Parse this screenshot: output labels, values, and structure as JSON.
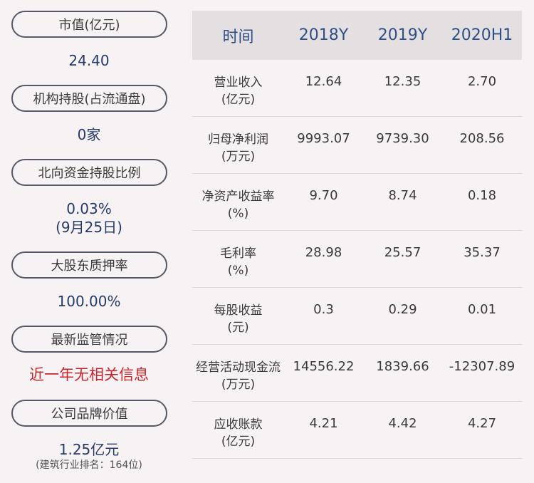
{
  "left": {
    "items": [
      {
        "label": "市值(亿元)",
        "value": "24.40"
      },
      {
        "label": "机构持股(占流通盘)",
        "value": "0家"
      },
      {
        "label": "北向资金持股比例",
        "value": "0.03%",
        "value2": "(9月25日)"
      },
      {
        "label": "大股东质押率",
        "value": "100.00%"
      },
      {
        "label": "最新监管情况",
        "value": "近一年无相关信息"
      },
      {
        "label": "公司品牌价值",
        "value": "1.25亿元",
        "note": "(建筑行业排名：164位)"
      }
    ]
  },
  "table": {
    "headers": [
      "时间",
      "2018Y",
      "2019Y",
      "2020H1"
    ],
    "rows": [
      {
        "label": "营业收入",
        "unit": "(亿元)",
        "values": [
          "12.64",
          "12.35",
          "2.70"
        ]
      },
      {
        "label": "归母净利润",
        "unit": "(万元)",
        "values": [
          "9993.07",
          "9739.30",
          "208.56"
        ]
      },
      {
        "label": "净资产收益率",
        "unit": "(%)",
        "values": [
          "9.70",
          "8.74",
          "0.18"
        ]
      },
      {
        "label": "毛利率",
        "unit": "(%)",
        "values": [
          "28.98",
          "25.57",
          "35.37"
        ]
      },
      {
        "label": "每股收益",
        "unit": "(元)",
        "values": [
          "0.3",
          "0.29",
          "0.01"
        ]
      },
      {
        "label": "经营活动现金流",
        "unit": "(万元)",
        "values": [
          "14556.22",
          "1839.66",
          "-12307.89"
        ]
      },
      {
        "label": "应收账款",
        "unit": "(亿元)",
        "values": [
          "4.21",
          "4.42",
          "4.27"
        ]
      }
    ]
  },
  "colors": {
    "accent": "#2f4f86",
    "alert": "#c9252b",
    "background": "#f7f2f4"
  }
}
